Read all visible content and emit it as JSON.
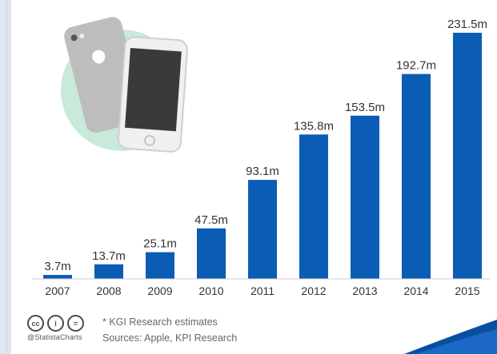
{
  "chart_data": {
    "type": "bar",
    "categories": [
      "2007",
      "2008",
      "2009",
      "2010",
      "2011",
      "2012",
      "2013",
      "2014",
      "2015"
    ],
    "values": [
      3.7,
      13.7,
      25.1,
      47.5,
      93.1,
      135.8,
      153.5,
      192.7,
      231.5
    ],
    "value_labels": [
      "3.7m",
      "13.7m",
      "25.1m",
      "47.5m",
      "93.1m",
      "135.8m",
      "153.5m",
      "192.7m",
      "231.5m"
    ],
    "title": "",
    "xlabel": "",
    "ylabel": "",
    "ylim": [
      0,
      231.5
    ],
    "grid": false,
    "bar_color": "#0a5cb5"
  },
  "footer": {
    "note": "* KGI Research estimates",
    "source": "Sources: Apple, KPI Research",
    "brand": "@StatistaCharts"
  },
  "icons": [
    "cc-icon",
    "person-icon",
    "equals-icon"
  ],
  "colors": {
    "bar": "#0a5cb5",
    "phone_circle": "#c8ead9",
    "phone_body": "#bdbdbd",
    "phone_screen": "#3a3a3a",
    "corner_swoosh": "#0a4ea0"
  }
}
